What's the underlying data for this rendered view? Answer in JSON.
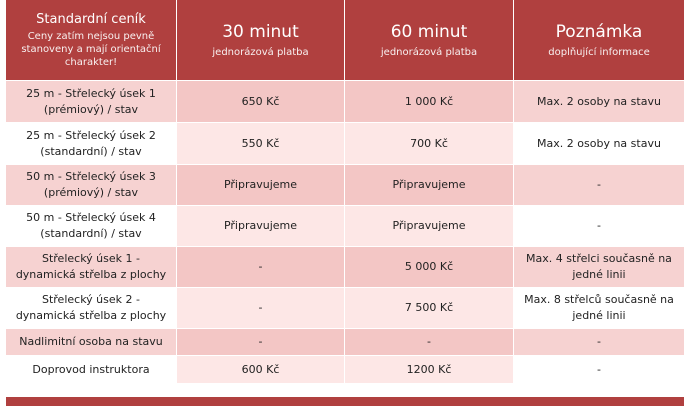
{
  "header": {
    "col0_title": "Standardní ceník",
    "col0_sub": "Ceny zatím nejsou pevně stanoveny a mají orientační charakter!",
    "col1_title": "30 minut",
    "col1_sub": "jednorázová platba",
    "col2_title": "60 minut",
    "col2_sub": "jednorázová platba",
    "col3_title": "Poznámka",
    "col3_sub": "doplňující informace"
  },
  "rows": [
    {
      "name": "25 m - Střelecký úsek 1 (prémiový) / stav",
      "p30": "650 Kč",
      "p60": "1 000 Kč",
      "note": "Max. 2 osoby na stavu"
    },
    {
      "name": "25 m - Střelecký úsek 2 (standardní) / stav",
      "p30": "550 Kč",
      "p60": "700 Kč",
      "note": "Max. 2 osoby na stavu"
    },
    {
      "name": "50 m - Střelecký úsek 3 (prémiový) / stav",
      "p30": "Připravujeme",
      "p60": "Připravujeme",
      "note": "-"
    },
    {
      "name": "50 m - Střelecký úsek 4 (standardní) / stav",
      "p30": "Připravujeme",
      "p60": "Připravujeme",
      "note": "-"
    },
    {
      "name": "Střelecký úsek 1 - dynamická střelba z plochy",
      "p30": "-",
      "p60": "5 000 Kč",
      "note": "Max. 4 střelci současně na jedné linii"
    },
    {
      "name": "Střelecký úsek 2 - dynamická střelba z plochy",
      "p30": "-",
      "p60": "7 500 Kč",
      "note": "Max. 8 střelců současně na jedné linii"
    },
    {
      "name": "Nadlimitní osoba na stavu",
      "p30": "-",
      "p60": "-",
      "note": "-"
    },
    {
      "name": "Doprovod instruktora",
      "p30": "600 Kč",
      "p60": "1200 Kč",
      "note": "-"
    }
  ],
  "colors": {
    "header_bg": "#b0403f",
    "pink_row": "#f6d2d1",
    "white_row": "#ffffff"
  }
}
